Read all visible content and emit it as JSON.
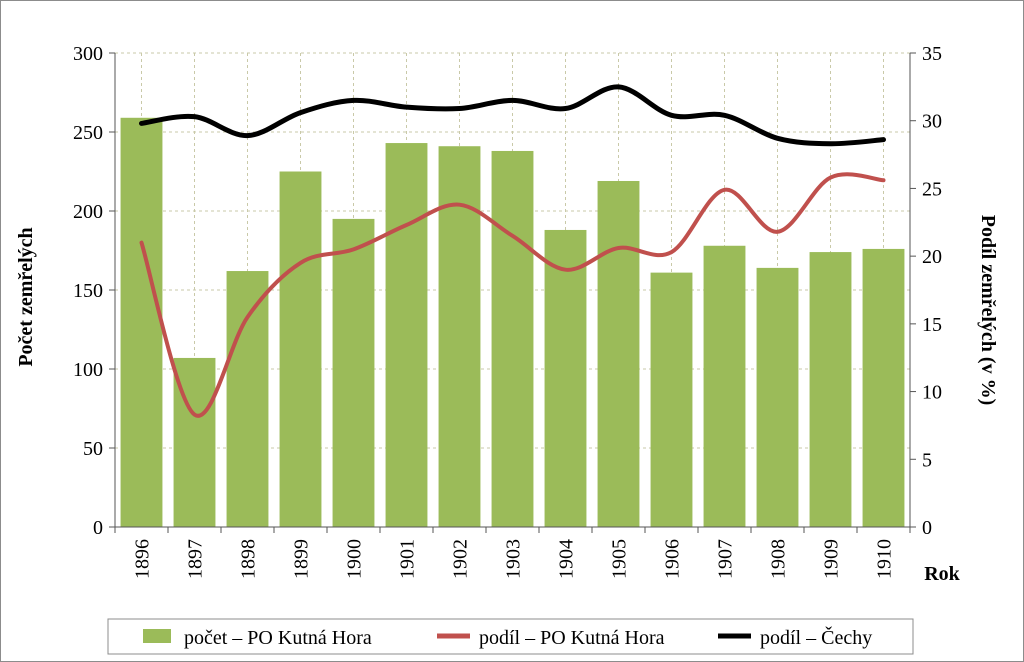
{
  "chart_data": {
    "type": "bar",
    "categories": [
      "1896",
      "1897",
      "1898",
      "1899",
      "1900",
      "1901",
      "1902",
      "1903",
      "1904",
      "1905",
      "1906",
      "1907",
      "1908",
      "1909",
      "1910"
    ],
    "series": [
      {
        "name": "počet – PO Kutná Hora",
        "type": "bar",
        "axis": "left",
        "color": "#9bbb59",
        "values": [
          259,
          107,
          162,
          225,
          195,
          243,
          241,
          238,
          188,
          219,
          161,
          178,
          164,
          174,
          176
        ]
      },
      {
        "name": "podíl – PO Kutná Hora",
        "type": "line",
        "axis": "right",
        "color": "#c0504d",
        "values": [
          21.0,
          8.3,
          15.5,
          19.5,
          20.5,
          22.3,
          23.8,
          21.5,
          19.0,
          20.6,
          20.3,
          24.9,
          21.8,
          25.8,
          25.6
        ]
      },
      {
        "name": "podíl – Čechy",
        "type": "line",
        "axis": "right",
        "color": "#000000",
        "values": [
          29.8,
          30.3,
          28.9,
          30.6,
          31.5,
          31.0,
          30.9,
          31.5,
          30.9,
          32.5,
          30.4,
          30.4,
          28.7,
          28.3,
          28.6
        ]
      }
    ],
    "xlabel": "Rok",
    "ylabel": "Počet zemřelých",
    "y2label": "Podíl zemřelých (v %)",
    "ylim": [
      0,
      300
    ],
    "y2lim": [
      0,
      35
    ],
    "yticks": [
      "0",
      "50",
      "100",
      "150",
      "200",
      "250",
      "300"
    ],
    "y2ticks": [
      "0",
      "5",
      "10",
      "15",
      "20",
      "25",
      "30",
      "35"
    ],
    "grid": true,
    "legend_position": "bottom"
  }
}
